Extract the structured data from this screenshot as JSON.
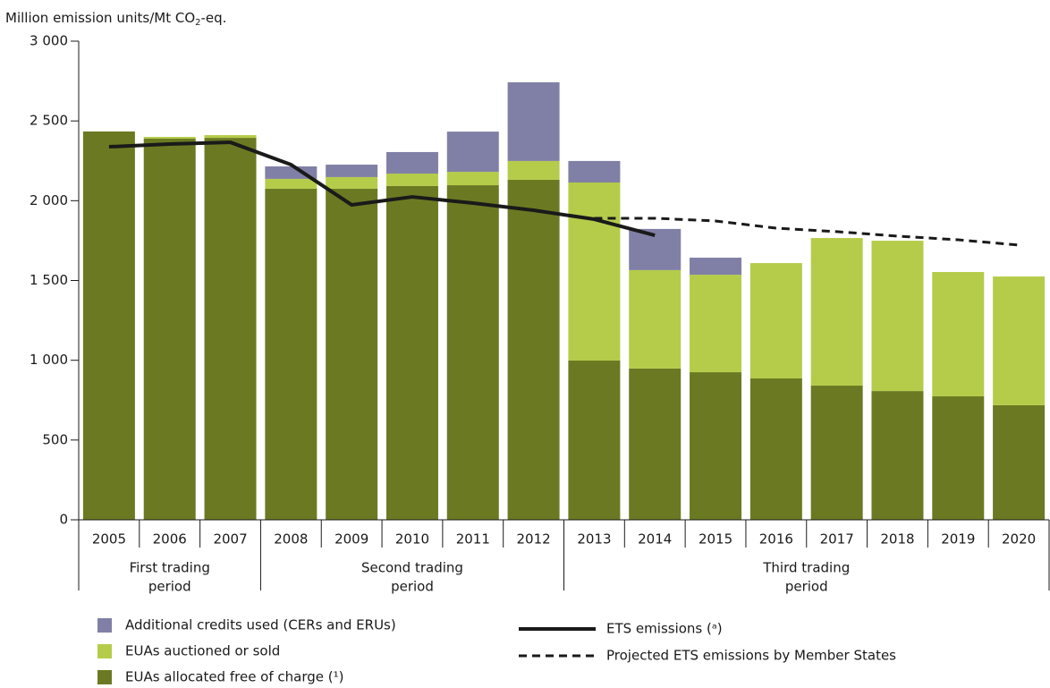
{
  "chart_data": {
    "type": "bar",
    "y_label": [
      "Million emission units/Mt CO",
      "2",
      "-eq."
    ],
    "categories": [
      "2005",
      "2006",
      "2007",
      "2008",
      "2009",
      "2010",
      "2011",
      "2012",
      "2013",
      "2014",
      "2015",
      "2016",
      "2017",
      "2018",
      "2019",
      "2020"
    ],
    "periods": [
      [
        "First trading",
        "period"
      ],
      [
        "Second trading",
        "period"
      ],
      [
        "Third trading",
        "period"
      ]
    ],
    "series": [
      {
        "name": "Additional credits used (CERs and ERUs)",
        "type": "bar",
        "color": "#8080a6",
        "values": [
          0,
          0,
          0,
          78,
          78,
          135,
          252,
          493,
          135,
          258,
          107,
          0,
          0,
          0,
          0,
          0
        ]
      },
      {
        "name": "EUAs auctioned or sold",
        "type": "bar",
        "color": "#b5cc4a",
        "values": [
          0,
          11,
          17,
          62,
          73,
          78,
          84,
          118,
          1116,
          617,
          611,
          723,
          925,
          942,
          779,
          807
        ]
      },
      {
        "name": "EUAs allocated free of charge (¹)",
        "type": "bar",
        "color": "#6b7a22",
        "values": [
          2434,
          2389,
          2394,
          2075,
          2075,
          2092,
          2097,
          2131,
          998,
          948,
          925,
          886,
          841,
          807,
          774,
          718
        ]
      },
      {
        "name": "ETS emissions (ᵃ)",
        "type": "line",
        "color": "#1a1a1a",
        "dashed": false,
        "values": [
          2338,
          2355,
          2366,
          2226,
          1974,
          2024,
          1985,
          1940,
          1884,
          1783,
          null,
          null,
          null,
          null,
          null,
          null
        ]
      },
      {
        "name": "Projected ETS emissions by Member States",
        "type": "line",
        "color": "#1a1a1a",
        "dashed": true,
        "values": [
          null,
          null,
          null,
          null,
          null,
          null,
          null,
          null,
          1890,
          1890,
          1873,
          1828,
          1806,
          1778,
          1755,
          1722
        ]
      }
    ],
    "ylim": [
      0,
      3000
    ],
    "yticks": [
      {
        "value": 0,
        "label": "0"
      },
      {
        "value": 500,
        "label": "500"
      },
      {
        "value": 1000,
        "label": "1 000"
      },
      {
        "value": 1500,
        "label": "1 500"
      },
      {
        "value": 2000,
        "label": "2 000"
      },
      {
        "value": 2500,
        "label": "2 500"
      },
      {
        "value": 3000,
        "label": "3 000"
      }
    ],
    "grid": false
  }
}
